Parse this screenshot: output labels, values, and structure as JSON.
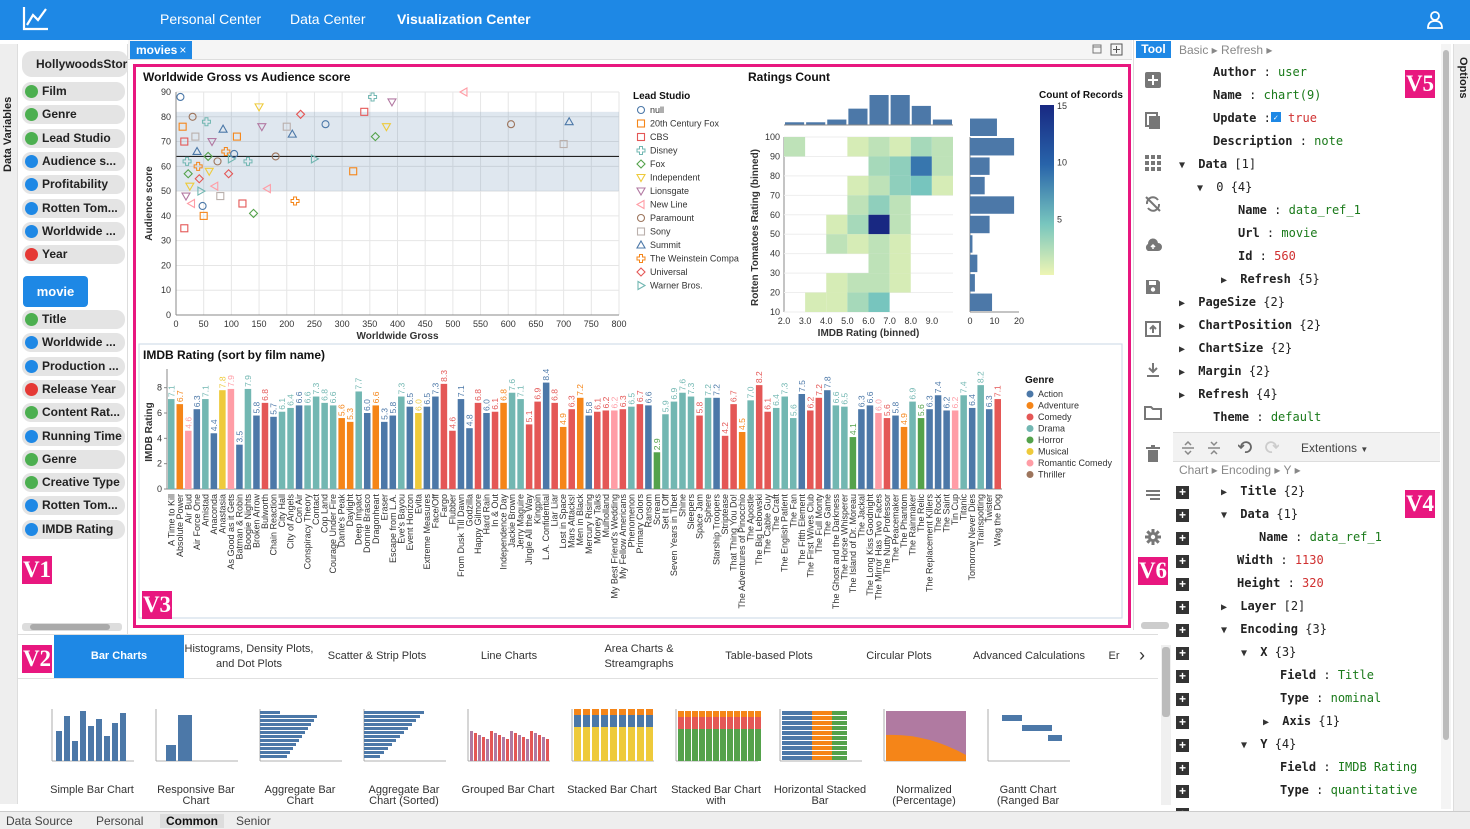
{
  "nav": {
    "personal": "Personal Center",
    "data": "Data Center",
    "viz": "Visualization Center"
  },
  "left": {
    "vertical_label": "Data Variables",
    "dataset": "HollywoodsStories",
    "fields1": [
      {
        "label": "Film",
        "kind": "N"
      },
      {
        "label": "Genre",
        "kind": "N"
      },
      {
        "label": "Lead Studio",
        "kind": "N"
      },
      {
        "label": "Audience s...",
        "kind": "Q"
      },
      {
        "label": "Profitability",
        "kind": "Q"
      },
      {
        "label": "Rotten Tom...",
        "kind": "Q"
      },
      {
        "label": "Worldwide ...",
        "kind": "Q"
      },
      {
        "label": "Year",
        "kind": "T"
      }
    ],
    "movie_btn": "movie",
    "fields2": [
      {
        "label": "Title",
        "kind": "N"
      },
      {
        "label": "Worldwide ...",
        "kind": "Q"
      },
      {
        "label": "Production ...",
        "kind": "Q"
      },
      {
        "label": "Release Year",
        "kind": "T"
      },
      {
        "label": "Content Rat...",
        "kind": "N"
      },
      {
        "label": "Running Time",
        "kind": "Q"
      },
      {
        "label": "Genre",
        "kind": "N"
      },
      {
        "label": "Creative Type",
        "kind": "N"
      },
      {
        "label": "Rotten Tom...",
        "kind": "Q"
      },
      {
        "label": "IMDB Rating",
        "kind": "Q"
      }
    ]
  },
  "tags": {
    "v1": "V1",
    "v2": "V2",
    "v3": "V3",
    "v4": "V4",
    "v5": "V5",
    "v6": "V6"
  },
  "center": {
    "tab": "movies",
    "close": "×"
  },
  "colors": {
    "accent": "#1e88e5",
    "highlight": "#e8177f",
    "nominal": "#4caf50",
    "quantitative": "#1e88e5",
    "temporal": "#e53935"
  },
  "chart_data": [
    {
      "type": "scatter",
      "title": "Worldwide Gross vs Audience score",
      "xlabel": "Worldwide Gross",
      "ylabel": "Audience score",
      "xlim": [
        0,
        800
      ],
      "ylim": [
        0,
        90
      ],
      "xticks": [
        0,
        50,
        100,
        150,
        200,
        250,
        300,
        350,
        400,
        450,
        500,
        550,
        600,
        650,
        700,
        750,
        800
      ],
      "yticks": [
        0,
        10,
        20,
        30,
        40,
        50,
        60,
        70,
        80,
        90
      ],
      "mean_line_y": 64,
      "band_y": [
        50,
        82
      ],
      "legend_title": "Lead Studio",
      "legend": [
        "null",
        "20th Century Fox",
        "CBS",
        "Disney",
        "Fox",
        "Independent",
        "Lionsgate",
        "New Line",
        "Paramount",
        "Sony",
        "Summit",
        "The Weinstein Compa",
        "Universal",
        "Warner Bros."
      ],
      "points": [
        {
          "x": 8,
          "y": 88
        },
        {
          "x": 12,
          "y": 76
        },
        {
          "x": 15,
          "y": 70
        },
        {
          "x": 20,
          "y": 62
        },
        {
          "x": 22,
          "y": 57
        },
        {
          "x": 25,
          "y": 52
        },
        {
          "x": 18,
          "y": 48
        },
        {
          "x": 28,
          "y": 45
        },
        {
          "x": 30,
          "y": 80
        },
        {
          "x": 35,
          "y": 72
        },
        {
          "x": 38,
          "y": 66
        },
        {
          "x": 40,
          "y": 60
        },
        {
          "x": 42,
          "y": 55
        },
        {
          "x": 45,
          "y": 50
        },
        {
          "x": 48,
          "y": 44
        },
        {
          "x": 50,
          "y": 40
        },
        {
          "x": 15,
          "y": 35
        },
        {
          "x": 55,
          "y": 78
        },
        {
          "x": 58,
          "y": 64
        },
        {
          "x": 60,
          "y": 58
        },
        {
          "x": 65,
          "y": 70
        },
        {
          "x": 70,
          "y": 52
        },
        {
          "x": 75,
          "y": 62
        },
        {
          "x": 80,
          "y": 48
        },
        {
          "x": 85,
          "y": 75
        },
        {
          "x": 90,
          "y": 66
        },
        {
          "x": 95,
          "y": 57
        },
        {
          "x": 100,
          "y": 63
        },
        {
          "x": 105,
          "y": 65
        },
        {
          "x": 110,
          "y": 72
        },
        {
          "x": 120,
          "y": 45
        },
        {
          "x": 130,
          "y": 62
        },
        {
          "x": 140,
          "y": 41
        },
        {
          "x": 150,
          "y": 84
        },
        {
          "x": 155,
          "y": 76
        },
        {
          "x": 165,
          "y": 51
        },
        {
          "x": 180,
          "y": 64
        },
        {
          "x": 200,
          "y": 76
        },
        {
          "x": 210,
          "y": 73
        },
        {
          "x": 215,
          "y": 46
        },
        {
          "x": 225,
          "y": 81
        },
        {
          "x": 250,
          "y": 63
        },
        {
          "x": 270,
          "y": 77
        },
        {
          "x": 320,
          "y": 58
        },
        {
          "x": 340,
          "y": 82
        },
        {
          "x": 355,
          "y": 88
        },
        {
          "x": 360,
          "y": 72
        },
        {
          "x": 380,
          "y": 76
        },
        {
          "x": 390,
          "y": 86
        },
        {
          "x": 520,
          "y": 90
        },
        {
          "x": 605,
          "y": 77
        },
        {
          "x": 700,
          "y": 69
        },
        {
          "x": 710,
          "y": 78
        }
      ]
    },
    {
      "type": "heatmap",
      "title": "Ratings Count",
      "xlabel": "IMDB Rating (binned)",
      "ylabel": "Rotten Tomatoes Rating (binned)",
      "xticks": [
        "2.0",
        "3.0",
        "4.0",
        "5.0",
        "6.0",
        "7.0",
        "8.0",
        "9.0"
      ],
      "yticks": [
        10,
        20,
        30,
        40,
        50,
        60,
        70,
        80,
        90,
        100
      ],
      "legend_title": "Count of Records",
      "legend_ticks": [
        15,
        10,
        5
      ],
      "top_hist": [
        1,
        1,
        2,
        6,
        11,
        11,
        7,
        2
      ],
      "right_hist_ticks": [
        0,
        10,
        20
      ],
      "right_hist": [
        9,
        2,
        3,
        1,
        8,
        18,
        6,
        8,
        18,
        11
      ],
      "cells": [
        {
          "x": 0,
          "y": 8,
          "v": 2
        },
        {
          "x": 3,
          "y": 8,
          "v": 1
        },
        {
          "x": 4,
          "y": 8,
          "v": 2
        },
        {
          "x": 5,
          "y": 8,
          "v": 1
        },
        {
          "x": 6,
          "y": 8,
          "v": 3
        },
        {
          "x": 7,
          "y": 8,
          "v": 2
        },
        {
          "x": 4,
          "y": 7,
          "v": 3
        },
        {
          "x": 5,
          "y": 7,
          "v": 4
        },
        {
          "x": 6,
          "y": 7,
          "v": 9
        },
        {
          "x": 7,
          "y": 7,
          "v": 2
        },
        {
          "x": 3,
          "y": 6,
          "v": 1
        },
        {
          "x": 4,
          "y": 6,
          "v": 2
        },
        {
          "x": 5,
          "y": 6,
          "v": 4
        },
        {
          "x": 6,
          "y": 6,
          "v": 5
        },
        {
          "x": 7,
          "y": 6,
          "v": 1
        },
        {
          "x": 3,
          "y": 5,
          "v": 2
        },
        {
          "x": 4,
          "y": 5,
          "v": 4
        },
        {
          "x": 5,
          "y": 5,
          "v": 2
        },
        {
          "x": 2,
          "y": 4,
          "v": 1
        },
        {
          "x": 3,
          "y": 4,
          "v": 3
        },
        {
          "x": 4,
          "y": 4,
          "v": 15
        },
        {
          "x": 5,
          "y": 4,
          "v": 2
        },
        {
          "x": 2,
          "y": 3,
          "v": 2
        },
        {
          "x": 3,
          "y": 3,
          "v": 1
        },
        {
          "x": 4,
          "y": 3,
          "v": 2
        },
        {
          "x": 5,
          "y": 3,
          "v": 1
        },
        {
          "x": 4,
          "y": 2,
          "v": 2
        },
        {
          "x": 5,
          "y": 2,
          "v": 1
        },
        {
          "x": 2,
          "y": 1,
          "v": 1
        },
        {
          "x": 3,
          "y": 1,
          "v": 2
        },
        {
          "x": 4,
          "y": 1,
          "v": 2
        },
        {
          "x": 5,
          "y": 1,
          "v": 1
        },
        {
          "x": 1,
          "y": 0,
          "v": 1
        },
        {
          "x": 2,
          "y": 0,
          "v": 1
        },
        {
          "x": 3,
          "y": 0,
          "v": 3
        },
        {
          "x": 4,
          "y": 0,
          "v": 5
        }
      ]
    },
    {
      "type": "bar",
      "title": "IMDB Rating (sort by film name)",
      "ylabel": "IMDB Rating",
      "ylim": [
        0,
        9
      ],
      "yticks": [
        0,
        2,
        4,
        6,
        8
      ],
      "legend_title": "Genre",
      "genres": [
        {
          "name": "Action",
          "color": "#4c78a8"
        },
        {
          "name": "Adventure",
          "color": "#f58518"
        },
        {
          "name": "Comedy",
          "color": "#e45756"
        },
        {
          "name": "Drama",
          "color": "#72b7b2"
        },
        {
          "name": "Horror",
          "color": "#54a24b"
        },
        {
          "name": "Musical",
          "color": "#eeca3b"
        },
        {
          "name": "Romantic Comedy",
          "color": "#ff9da6"
        },
        {
          "name": "Thriller",
          "color": "#9d755d"
        }
      ],
      "categories": [
        "A Time to Kill",
        "Absolute Power",
        "Air Bud",
        "Air Force One",
        "Amistad",
        "Anaconda",
        "Anastasia",
        "As Good as it Gets",
        "Batman & Robin",
        "Boogie Nights",
        "Broken Arrow",
        "Bulworth",
        "Chain Reaction",
        "City Hall",
        "City of Angels",
        "Con Air",
        "Conspiracy Theory",
        "Contact",
        "Cop Land",
        "Courage Under Fire",
        "Dante's Peak",
        "Daylight",
        "Deep Impact",
        "Donnie Brasco",
        "Dragonheart",
        "Eraser",
        "Escape from L.A.",
        "Eve's Bayou",
        "Event Horizon",
        "Evita",
        "Extreme Measures",
        "Face/Off",
        "Fargo",
        "Flubber",
        "From Dusk Till Dawn",
        "Godzilla",
        "Happy Gilmore",
        "Hard Rain",
        "In & Out",
        "Independence Day",
        "Jackie Brown",
        "Jerry Maguire",
        "Jingle All the Way",
        "Kingpin",
        "L.A. Confidential",
        "Liar Liar",
        "Lost in Space",
        "Mars Attacks!",
        "Men in Black",
        "Mercury Rising",
        "Money Talks",
        "Mulholland",
        "My Best Friend's Wedding",
        "My Fellow Americans",
        "Phenomenon",
        "Primary Colors",
        "Ransom",
        "Scream",
        "Set It Off",
        "Seven Years in Tibet",
        "Shine",
        "Sleepers",
        "Space Jam",
        "Sphere",
        "Starship Troopers",
        "Striptease",
        "That Thing You Do!",
        "The Adventures of Pinocchio",
        "The Apostle",
        "The Big Lebowski",
        "The Cable Guy",
        "The Craft",
        "The English Patient",
        "The Fan",
        "The Fifth Element",
        "The First Wives Club",
        "The Full Monty",
        "The Game",
        "The Ghost and the Darkness",
        "The Horse Whisperer",
        "The Island of Dr. Moreau",
        "The Jackal",
        "The Long Kiss Goodnight",
        "The Mirror Has Two Faces",
        "The Nutty Professor",
        "The Peacemaker",
        "The Phantom",
        "The Rainmaker",
        "The Relic",
        "The Replacement Killers",
        "The Rock",
        "The Saint",
        "Tin Cup",
        "Titanic",
        "Tomorrow Never Dies",
        "Trainspotting",
        "Twister",
        "Wag the Dog"
      ],
      "values": [
        7.1,
        6.7,
        4.6,
        6.3,
        7.1,
        4.4,
        7.8,
        7.9,
        3.5,
        7.9,
        5.8,
        6.8,
        5.7,
        6.1,
        6.4,
        6.6,
        6.6,
        7.3,
        6.8,
        6.6,
        5.6,
        5.3,
        7.7,
        6.0,
        6.6,
        5.3,
        5.8,
        7.3,
        6.5,
        6.0,
        6.5,
        7.3,
        8.3,
        4.6,
        7.1,
        4.8,
        6.8,
        6.0,
        6.1,
        6.8,
        7.6,
        7.1,
        5.1,
        6.9,
        8.4,
        6.8,
        4.9,
        6.3,
        7.2,
        5.8,
        6.1,
        6.2,
        6.2,
        6.3,
        6.5,
        6.7,
        6.6,
        2.9,
        5.9,
        6.9,
        7.6,
        7.3,
        5.8,
        7.2,
        7.2,
        4.2,
        6.7,
        4.5,
        7.0,
        8.2,
        6.1,
        6.4,
        7.3,
        5.6,
        7.5,
        6.2,
        7.2,
        7.8,
        6.6,
        6.5,
        4.1,
        6.3,
        6.6,
        6.0,
        5.6,
        5.8,
        4.9,
        6.9,
        5.6,
        6.3,
        7.4,
        6.2,
        6.2,
        7.4,
        6.4,
        8.2,
        6.3,
        7.1
      ],
      "genre_idx": [
        3,
        1,
        6,
        0,
        3,
        0,
        5,
        6,
        0,
        3,
        0,
        2,
        0,
        3,
        3,
        0,
        3,
        3,
        3,
        3,
        1,
        1,
        3,
        0,
        1,
        0,
        0,
        3,
        0,
        5,
        0,
        0,
        2,
        2,
        0,
        0,
        2,
        0,
        2,
        1,
        3,
        3,
        2,
        2,
        0,
        2,
        1,
        2,
        1,
        0,
        2,
        2,
        6,
        2,
        3,
        2,
        0,
        4,
        3,
        3,
        3,
        3,
        2,
        3,
        0,
        2,
        2,
        1,
        3,
        2,
        2,
        3,
        3,
        3,
        0,
        2,
        2,
        0,
        3,
        3,
        4,
        0,
        0,
        6,
        2,
        0,
        1,
        3,
        4,
        0,
        0,
        0,
        6,
        3,
        0,
        3,
        0,
        2
      ]
    }
  ],
  "bottom": {
    "tabs": [
      "Bar Charts",
      "Histograms, Density Plots, and Dot Plots",
      "Scatter & Strip Plots",
      "Line Charts",
      "Area Charts & Streamgraphs",
      "Table-based Plots",
      "Circular Plots",
      "Advanced Calculations",
      "Er"
    ],
    "chevron": "›",
    "thumbs": [
      "Simple Bar Chart",
      "Responsive Bar Chart",
      "Aggregate Bar Chart",
      "Aggregate Bar Chart (Sorted)",
      "Grouped Bar Chart",
      "Stacked Bar Chart",
      "Stacked Bar Chart with",
      "Horizontal Stacked Bar",
      "Normalized (Percentage)",
      "Gantt Chart (Ranged Bar"
    ]
  },
  "tool": {
    "title": "Tool"
  },
  "right": {
    "bc1": "Basic ▸ Refresh ▸",
    "author_k": "Author",
    "author_v": "user",
    "name_k": "Name",
    "name_v": "chart(9)",
    "update_k": "Update",
    "update_v": "true",
    "desc_k": "Description",
    "desc_v": "note",
    "data_k": "Data",
    "data_c": "[1]",
    "zero_k": "0",
    "zero_c": "{4}",
    "dname_k": "Name",
    "dname_v": "data_ref_1",
    "url_k": "Url",
    "url_v": "movie",
    "id_k": "Id",
    "id_v": "560",
    "refresh_k": "Refresh",
    "refresh_c": "{5}",
    "pagesize_k": "PageSize",
    "pagesize_c": "{2}",
    "chartpos_k": "ChartPosition",
    "chartpos_c": "{2}",
    "chartsize_k": "ChartSize",
    "chartsize_c": "{2}",
    "margin_k": "Margin",
    "margin_c": "{2}",
    "refresh2_k": "Refresh",
    "refresh2_c": "{4}",
    "theme_k": "Theme",
    "theme_v": "default",
    "extensions": "Extentions",
    "bc2": "Chart ▸ Encoding ▸ Y ▸",
    "title_k": "Title",
    "title_c": "{2}",
    "data2_k": "Data",
    "data2_c": "{1}",
    "name2_k": "Name",
    "name2_v": "data_ref_1",
    "width_k": "Width",
    "width_v": "1130",
    "height_k": "Height",
    "height_v": "320",
    "layer_k": "Layer",
    "layer_c": "[2]",
    "enc_k": "Encoding",
    "enc_c": "{3}",
    "x_k": "X",
    "x_c": "{3}",
    "field_k": "Field",
    "field_v": "Title",
    "type_k": "Type",
    "type_v": "nominal",
    "axis_k": "Axis",
    "axis_c": "{1}",
    "y_k": "Y",
    "y_c": "{4}",
    "yfield_k": "Field",
    "yfield_v": "IMDB Rating",
    "ytype_k": "Type",
    "ytype_v": "quantitative",
    "options": "Options"
  },
  "footer": [
    "Data Source",
    "Personal",
    "Common",
    "Senior"
  ]
}
